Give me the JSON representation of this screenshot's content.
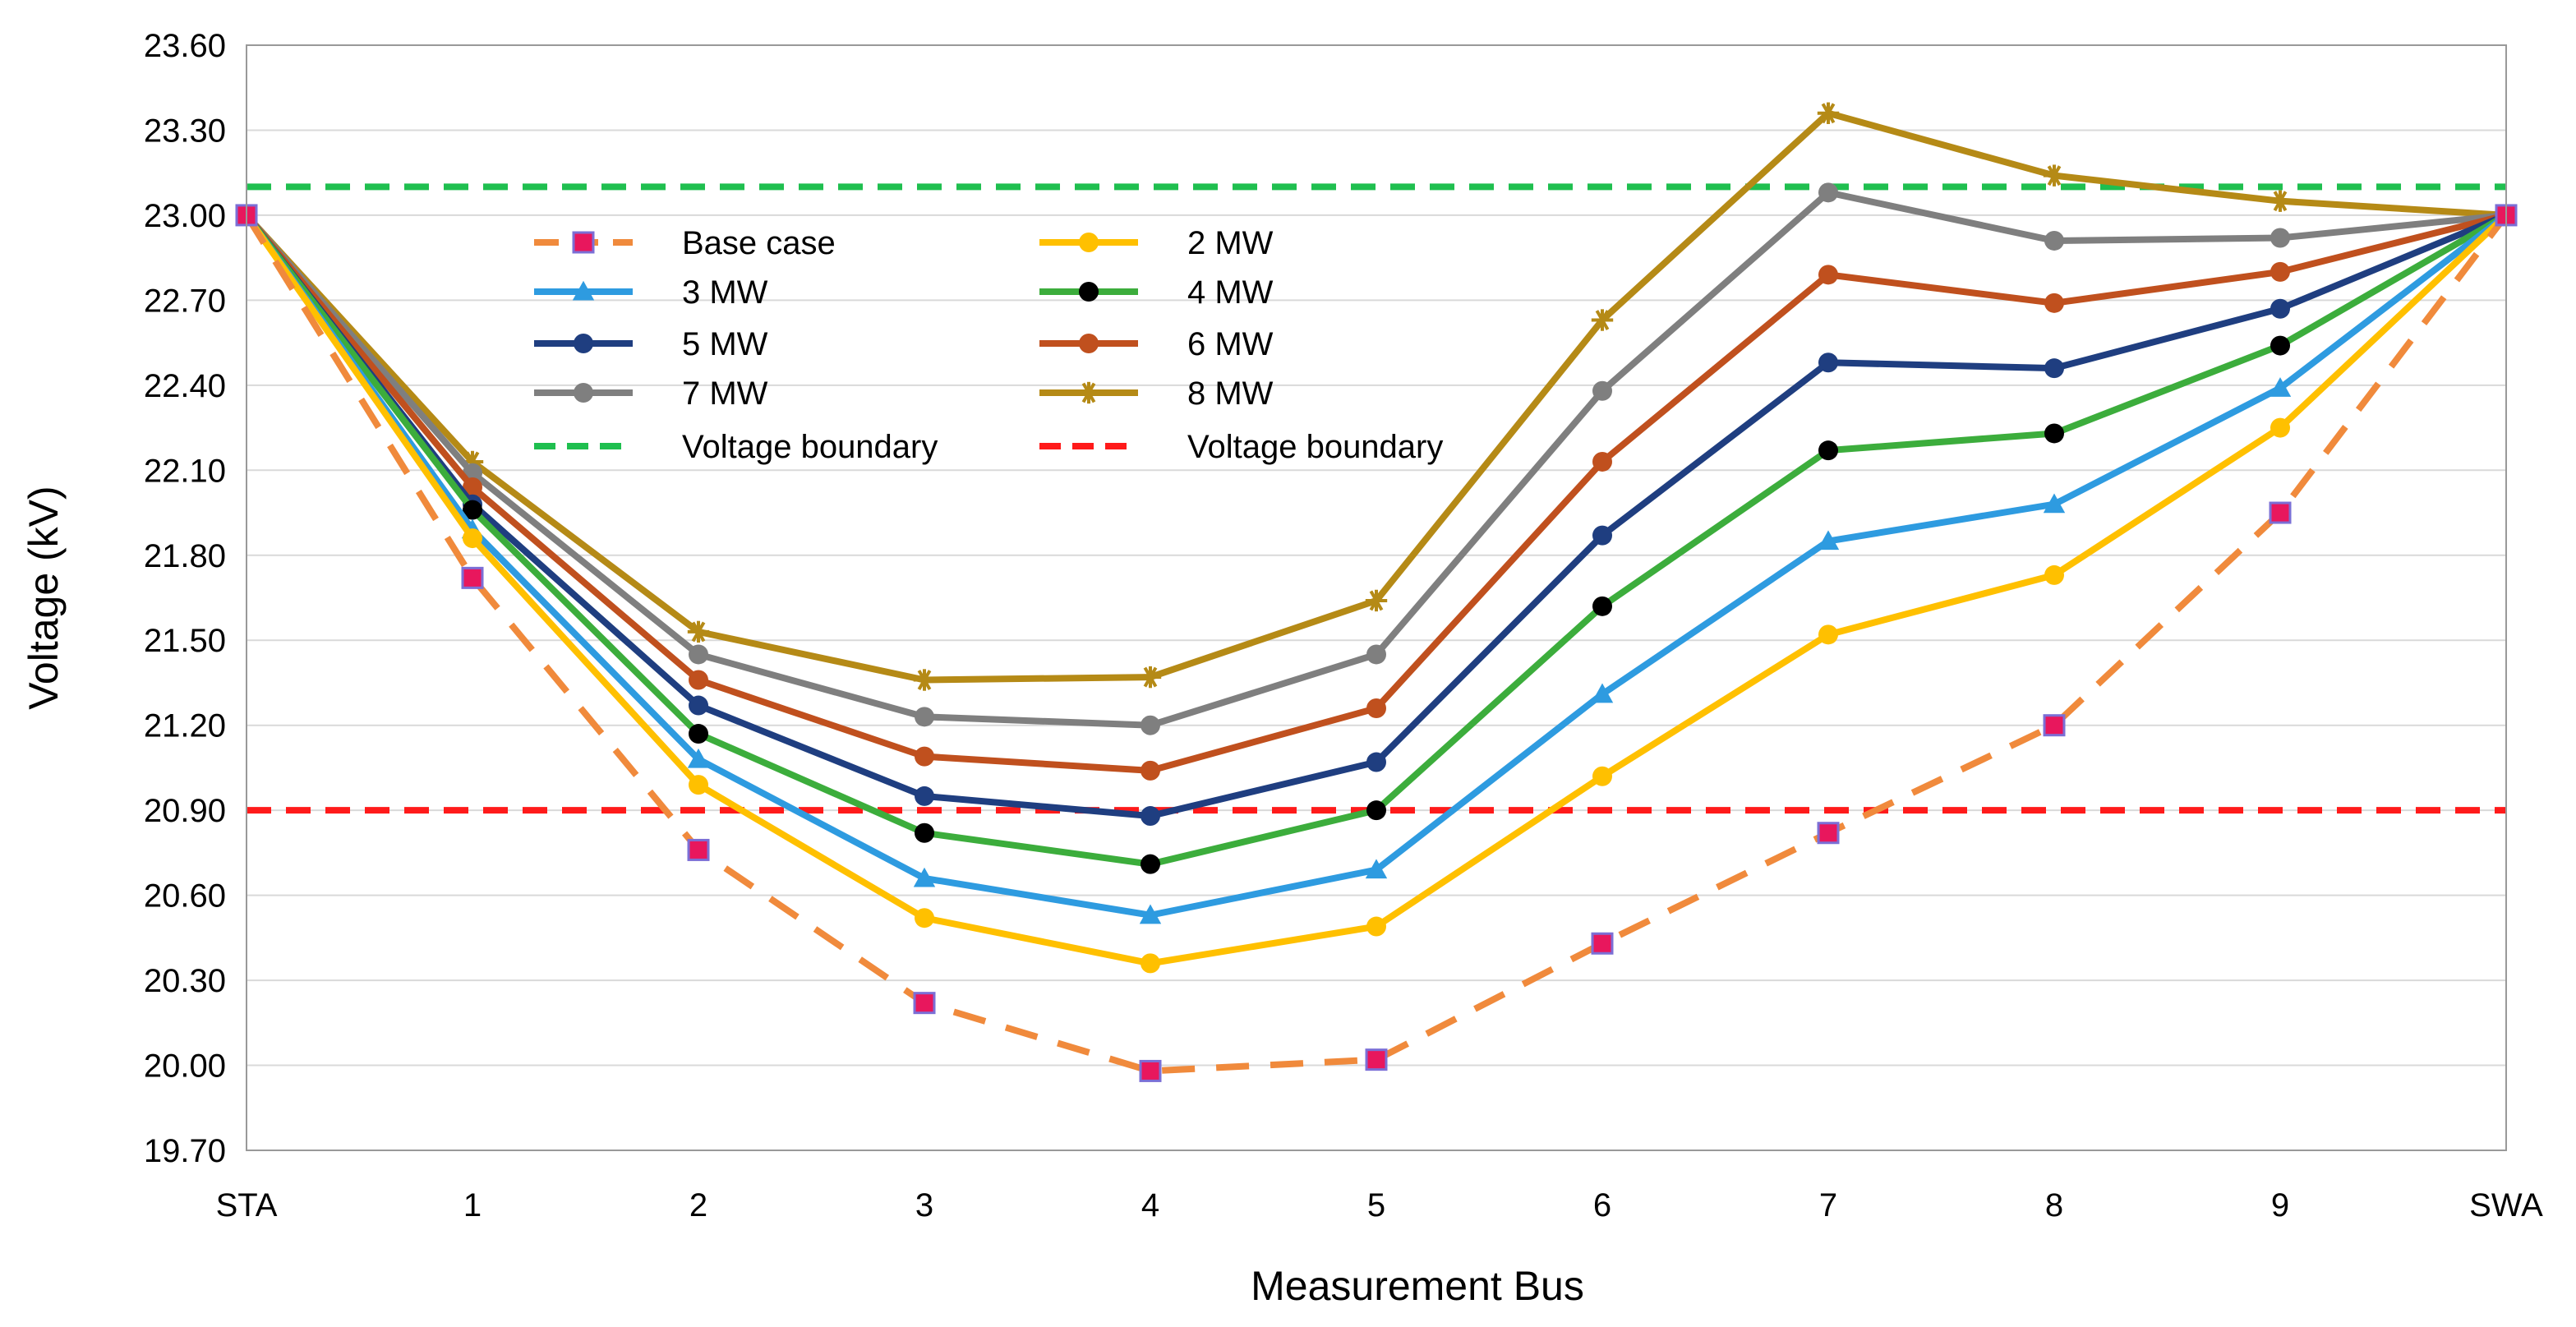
{
  "chart_data": {
    "type": "line",
    "title": "",
    "xlabel": "Measurement Bus",
    "ylabel": "Voltage (kV)",
    "categories": [
      "STA",
      "1",
      "2",
      "3",
      "4",
      "5",
      "6",
      "7",
      "8",
      "9",
      "SWA"
    ],
    "ylim": [
      19.7,
      23.6
    ],
    "yticks": [
      "19.70",
      "20.00",
      "20.30",
      "20.60",
      "20.90",
      "21.20",
      "21.50",
      "21.80",
      "22.10",
      "22.40",
      "22.70",
      "23.00",
      "23.30",
      "23.60"
    ],
    "grid": true,
    "legend_position": "upper-left inside plot, two columns",
    "series": [
      {
        "name": "Base case",
        "color": "#f08a3c",
        "marker_color": "#e8175d",
        "dash": "dashed",
        "marker": "square",
        "values": [
          23.0,
          21.72,
          20.76,
          20.22,
          19.98,
          20.02,
          20.43,
          20.82,
          21.2,
          21.95,
          23.0
        ]
      },
      {
        "name": "2 MW",
        "color": "#ffc000",
        "marker_color": "#ffc000",
        "dash": "solid",
        "marker": "circle",
        "values": [
          23.0,
          21.86,
          20.99,
          20.52,
          20.36,
          20.49,
          21.02,
          21.52,
          21.73,
          22.25,
          23.0
        ]
      },
      {
        "name": "3 MW",
        "color": "#2e9be0",
        "marker_color": "#2e9be0",
        "dash": "solid",
        "marker": "triangle",
        "values": [
          23.0,
          21.89,
          21.08,
          20.66,
          20.53,
          20.69,
          21.31,
          21.85,
          21.98,
          22.39,
          23.0
        ]
      },
      {
        "name": "4 MW",
        "color": "#3cad3c",
        "marker_color": "#000000",
        "dash": "solid",
        "marker": "circle",
        "values": [
          23.0,
          21.96,
          21.17,
          20.82,
          20.71,
          20.9,
          21.62,
          22.17,
          22.23,
          22.54,
          23.0
        ]
      },
      {
        "name": "5 MW",
        "color": "#1f3e80",
        "marker_color": "#1f3e80",
        "dash": "solid",
        "marker": "circle",
        "values": [
          23.0,
          21.98,
          21.27,
          20.95,
          20.88,
          21.07,
          21.87,
          22.48,
          22.46,
          22.67,
          23.0
        ]
      },
      {
        "name": "6 MW",
        "color": "#c0501e",
        "marker_color": "#c0501e",
        "dash": "solid",
        "marker": "circle",
        "values": [
          23.0,
          22.04,
          21.36,
          21.09,
          21.04,
          21.26,
          22.13,
          22.79,
          22.69,
          22.8,
          23.0
        ]
      },
      {
        "name": "7 MW",
        "color": "#7f7f7f",
        "marker_color": "#7f7f7f",
        "dash": "solid",
        "marker": "circle",
        "values": [
          23.0,
          22.09,
          21.45,
          21.23,
          21.2,
          21.45,
          22.38,
          23.08,
          22.91,
          22.92,
          23.0
        ]
      },
      {
        "name": "8 MW",
        "color": "#b58a16",
        "marker_color": "#b58a16",
        "dash": "solid",
        "marker": "star",
        "values": [
          23.0,
          22.13,
          21.53,
          21.36,
          21.37,
          21.64,
          22.63,
          23.36,
          23.14,
          23.05,
          23.0
        ]
      }
    ],
    "reference_lines": [
      {
        "name": "Voltage boundary",
        "value": 23.1,
        "color": "#1fbf4f",
        "dash": "dashed"
      },
      {
        "name": "Voltage boundary",
        "value": 20.9,
        "color": "#ff1a1a",
        "dash": "dashed"
      }
    ]
  }
}
